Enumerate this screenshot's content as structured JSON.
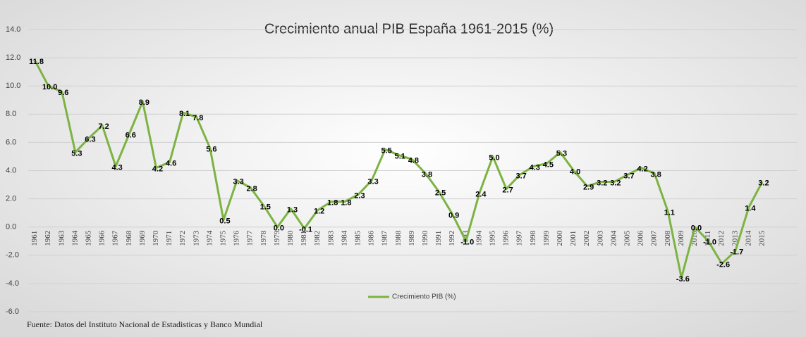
{
  "chart_data": {
    "type": "line",
    "title": "Crecimiento anual PIB España 1961-2015 (%)",
    "categories": [
      "1961",
      "1962",
      "1963",
      "1964",
      "1965",
      "1966",
      "1967",
      "1968",
      "1969",
      "1970",
      "1971",
      "1972",
      "1973",
      "1974",
      "1975",
      "1976",
      "1977",
      "1978",
      "1979",
      "1980",
      "1981",
      "1982",
      "1983",
      "1984",
      "1985",
      "1986",
      "1987",
      "1988",
      "1989",
      "1990",
      "1991",
      "1992",
      "1993",
      "1994",
      "1995",
      "1996",
      "1997",
      "1998",
      "1999",
      "2000",
      "2001",
      "2002",
      "2003",
      "2004",
      "2005",
      "2006",
      "2007",
      "2008",
      "2009",
      "2010",
      "2011",
      "2012",
      "2013",
      "2014",
      "2015"
    ],
    "series": [
      {
        "name": "Crecimiento PIB (%)",
        "color": "#7cb342",
        "values": [
          11.8,
          10.0,
          9.6,
          5.3,
          6.3,
          7.2,
          4.3,
          6.6,
          8.9,
          4.2,
          4.6,
          8.1,
          7.8,
          5.6,
          0.5,
          3.3,
          2.8,
          1.5,
          0.0,
          1.3,
          -0.1,
          1.2,
          1.8,
          1.8,
          2.3,
          3.3,
          5.5,
          5.1,
          4.8,
          3.8,
          2.5,
          0.9,
          -1.0,
          2.4,
          5.0,
          2.7,
          3.7,
          4.3,
          4.5,
          5.3,
          4.0,
          2.9,
          3.2,
          3.2,
          3.7,
          4.2,
          3.8,
          1.1,
          -3.6,
          0.0,
          -1.0,
          -2.6,
          -1.7,
          1.4,
          3.2
        ],
        "value_labels": [
          "11.8",
          "10.0",
          "9.6",
          "5.3",
          "6.3",
          "7.2",
          "4.3",
          "6.6",
          "8.9",
          "4.2",
          "4.6",
          "8.1",
          "7.8",
          "5.6",
          "0.5",
          "3.3",
          "2.8",
          "1.5",
          "0.0",
          "1.3",
          "-0.1",
          "1.2",
          "1.8",
          "1.8",
          "2.3",
          "3.3",
          "5.5",
          "5.1",
          "4.8",
          "3.8",
          "2.5",
          "0.9",
          "-1.0",
          "2.4",
          "5.0",
          "2.7",
          "3.7",
          "4.3",
          "4.5",
          "5.3",
          "4.0",
          "2.9",
          "3.2",
          "3.2",
          "3.7",
          "4.2",
          "3.8",
          "1.1",
          "-3.6",
          "0.0",
          "-1.0",
          "-2.6",
          "-1.7",
          "1.4",
          "3.2"
        ]
      }
    ],
    "ylim": [
      -6,
      14
    ],
    "yticks": [
      {
        "value": -6,
        "label": "-6.0"
      },
      {
        "value": -4,
        "label": "-4.0"
      },
      {
        "value": -2,
        "label": "-2.0"
      },
      {
        "value": 0,
        "label": "0.0"
      },
      {
        "value": 2,
        "label": "2.0"
      },
      {
        "value": 4,
        "label": "4.0"
      },
      {
        "value": 6,
        "label": "6.0"
      },
      {
        "value": 8,
        "label": "8.0"
      },
      {
        "value": 10,
        "label": "10.0"
      },
      {
        "value": 12,
        "label": "12.0"
      },
      {
        "value": 14,
        "label": "14.0"
      }
    ],
    "grid": true,
    "legend": "bottom",
    "source": "Fuente: Datos del Instituto Nacional de Estadisticas y Banco Mundial"
  }
}
